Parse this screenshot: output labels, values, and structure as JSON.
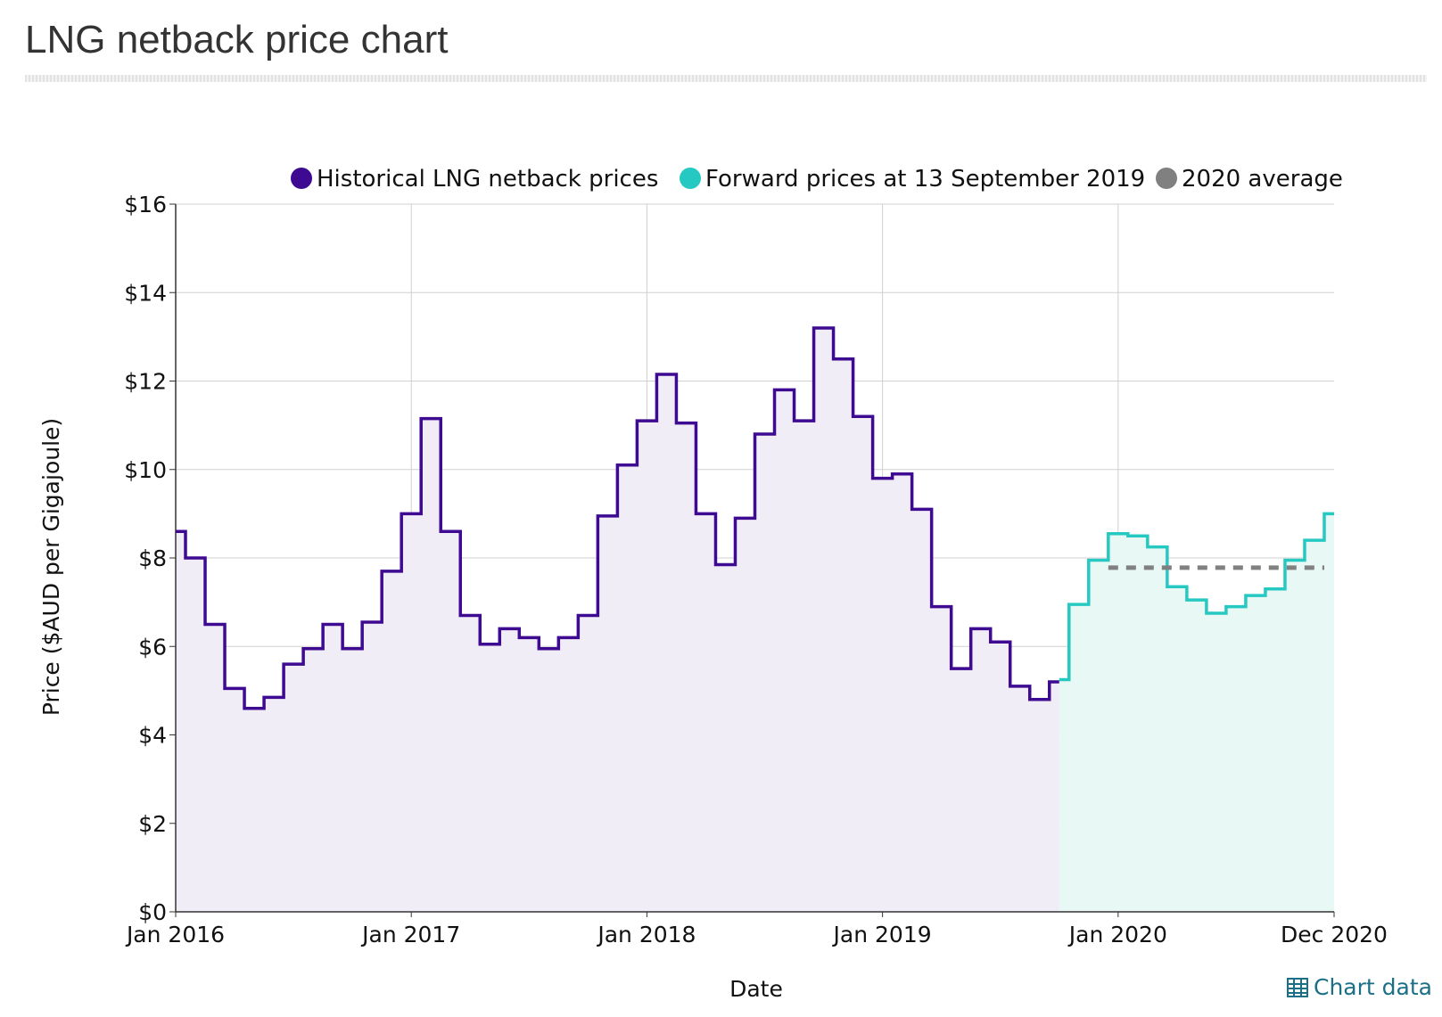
{
  "page": {
    "title": "LNG netback price chart",
    "chart_data_link": "Chart data"
  },
  "chart_data": {
    "type": "line",
    "step": true,
    "xlabel": "Date",
    "ylabel": "Price ($AUD per Gigajoule)",
    "ylim": [
      0,
      16
    ],
    "xlim": [
      "2016-01",
      "2020-12"
    ],
    "yticks": [
      "$0",
      "$2",
      "$4",
      "$6",
      "$8",
      "$10",
      "$12",
      "$14",
      "$16"
    ],
    "xticks": [
      {
        "date": "2016-01",
        "label": "Jan 2016"
      },
      {
        "date": "2017-01",
        "label": "Jan 2017"
      },
      {
        "date": "2018-01",
        "label": "Jan 2018"
      },
      {
        "date": "2019-01",
        "label": "Jan 2019"
      },
      {
        "date": "2020-01",
        "label": "Jan 2020"
      },
      {
        "date": "2020-12",
        "label": "Dec 2020"
      }
    ],
    "grid": true,
    "legend_position": "top",
    "series": [
      {
        "name": "Historical LNG netback prices",
        "color": "#3d0a91",
        "fill": "#f1edf7",
        "points": [
          [
            "2016-01",
            8.6
          ],
          [
            "2016-02",
            8.0
          ],
          [
            "2016-03",
            6.5
          ],
          [
            "2016-04",
            5.05
          ],
          [
            "2016-05",
            4.6
          ],
          [
            "2016-06",
            4.85
          ],
          [
            "2016-07",
            5.6
          ],
          [
            "2016-08",
            5.95
          ],
          [
            "2016-09",
            6.5
          ],
          [
            "2016-10",
            5.95
          ],
          [
            "2016-11",
            6.55
          ],
          [
            "2016-12",
            7.7
          ],
          [
            "2017-01",
            9.0
          ],
          [
            "2017-02",
            11.15
          ],
          [
            "2017-03",
            8.6
          ],
          [
            "2017-04",
            6.7
          ],
          [
            "2017-05",
            6.05
          ],
          [
            "2017-06",
            6.4
          ],
          [
            "2017-07",
            6.2
          ],
          [
            "2017-08",
            5.95
          ],
          [
            "2017-09",
            6.2
          ],
          [
            "2017-10",
            6.7
          ],
          [
            "2017-11",
            8.95
          ],
          [
            "2017-12",
            10.1
          ],
          [
            "2018-01",
            11.1
          ],
          [
            "2018-02",
            12.15
          ],
          [
            "2018-03",
            11.05
          ],
          [
            "2018-04",
            9.0
          ],
          [
            "2018-05",
            7.85
          ],
          [
            "2018-06",
            8.9
          ],
          [
            "2018-07",
            10.8
          ],
          [
            "2018-08",
            11.8
          ],
          [
            "2018-09",
            11.1
          ],
          [
            "2018-10",
            13.2
          ],
          [
            "2018-11",
            12.5
          ],
          [
            "2018-12",
            11.2
          ],
          [
            "2019-01",
            9.8
          ],
          [
            "2019-02",
            9.9
          ],
          [
            "2019-03",
            9.1
          ],
          [
            "2019-04",
            6.9
          ],
          [
            "2019-05",
            5.5
          ],
          [
            "2019-06",
            6.4
          ],
          [
            "2019-07",
            6.1
          ],
          [
            "2019-08",
            5.1
          ],
          [
            "2019-09",
            4.8
          ],
          [
            "2019-10",
            5.2
          ]
        ]
      },
      {
        "name": "Forward prices at 13 September 2019",
        "color": "#26c9c2",
        "fill": "#e8f8f5",
        "points": [
          [
            "2019-10",
            5.25
          ],
          [
            "2019-11",
            6.95
          ],
          [
            "2019-12",
            7.95
          ],
          [
            "2020-01",
            8.55
          ],
          [
            "2020-02",
            8.5
          ],
          [
            "2020-03",
            8.25
          ],
          [
            "2020-04",
            7.35
          ],
          [
            "2020-05",
            7.05
          ],
          [
            "2020-06",
            6.75
          ],
          [
            "2020-07",
            6.9
          ],
          [
            "2020-08",
            7.15
          ],
          [
            "2020-09",
            7.3
          ],
          [
            "2020-10",
            7.95
          ],
          [
            "2020-11",
            8.4
          ],
          [
            "2020-12",
            9.0
          ]
        ]
      },
      {
        "name": "2020 average",
        "color": "#808080",
        "dashed": true,
        "points": [
          [
            "2020-01",
            7.78
          ],
          [
            "2020-12",
            7.78
          ]
        ]
      }
    ]
  }
}
